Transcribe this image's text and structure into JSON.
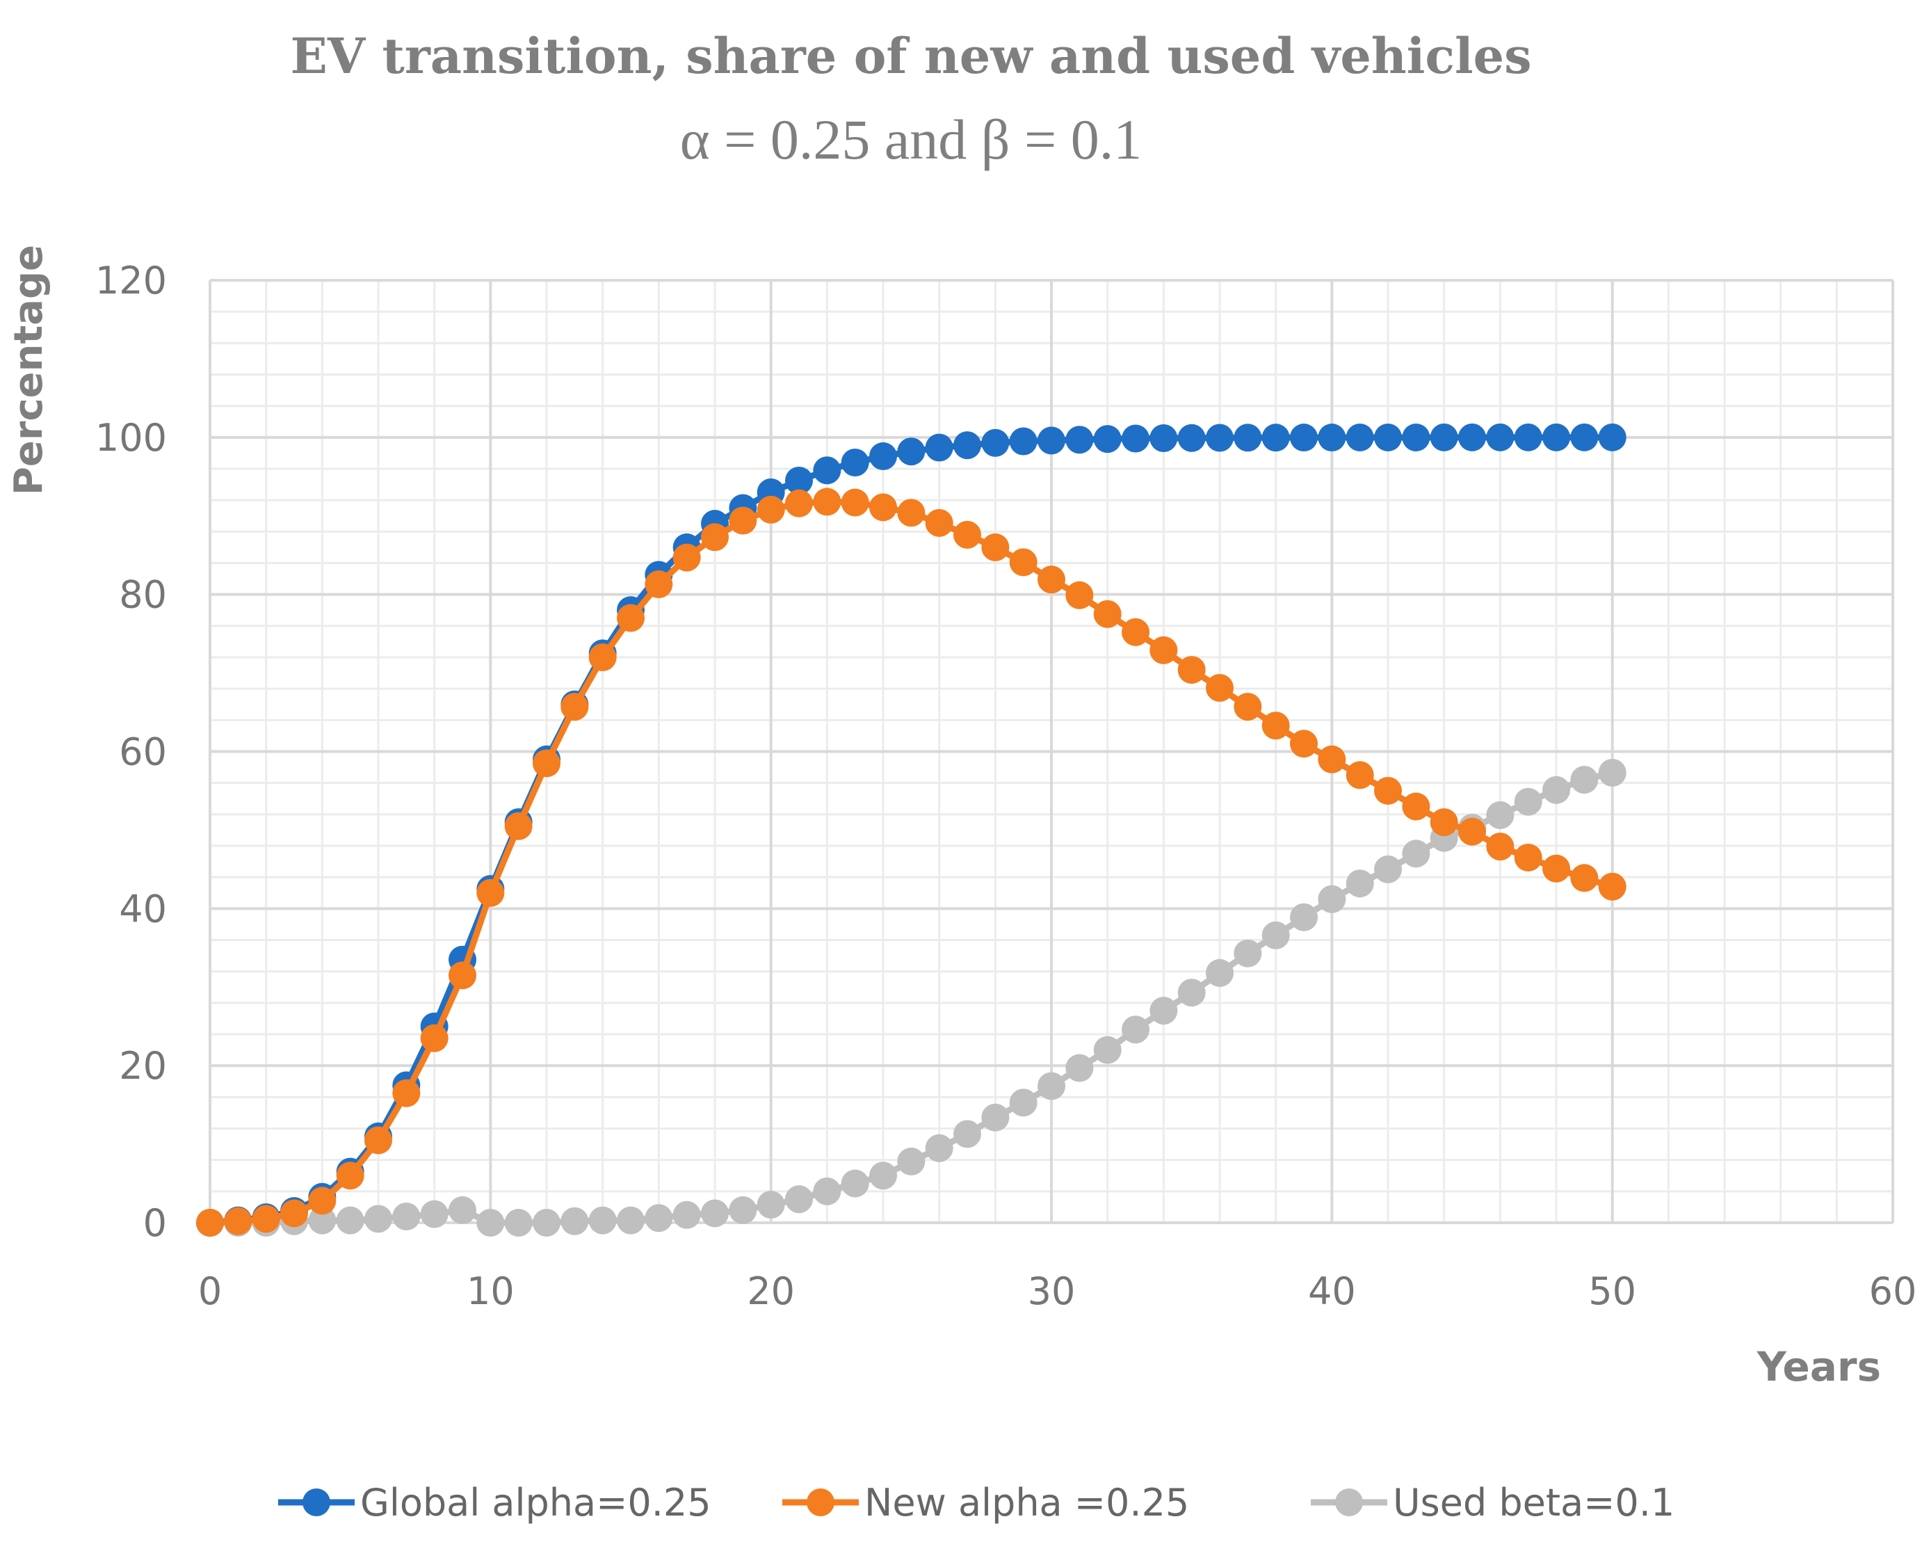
{
  "chart_data": {
    "type": "line",
    "title": "EV transition, share of new and used vehicles",
    "subtitle": "α  = 0.25 and β = 0.1",
    "xlabel": "Years",
    "ylabel": "Percentage",
    "xlim": [
      0,
      60
    ],
    "ylim": [
      0,
      120
    ],
    "x_ticks": [
      0,
      10,
      20,
      30,
      40,
      50,
      60
    ],
    "y_ticks": [
      0,
      20,
      40,
      60,
      80,
      100,
      120
    ],
    "grid": true,
    "legend_position": "bottom",
    "x": [
      0,
      1,
      2,
      3,
      4,
      5,
      6,
      7,
      8,
      9,
      10,
      11,
      12,
      13,
      14,
      15,
      16,
      17,
      18,
      19,
      20,
      21,
      22,
      23,
      24,
      25,
      26,
      27,
      28,
      29,
      30,
      31,
      32,
      33,
      34,
      35,
      36,
      37,
      38,
      39,
      40,
      41,
      42,
      43,
      44,
      45,
      46,
      47,
      48,
      49,
      50
    ],
    "series": [
      {
        "name": "Global alpha=0.25",
        "color": "#1f6fc6",
        "values": [
          0,
          0.3,
          0.7,
          1.5,
          3.3,
          6.5,
          11,
          17.5,
          25,
          33.5,
          42.5,
          51,
          59,
          66,
          72.5,
          78,
          82.5,
          86,
          89,
          91,
          93,
          94.5,
          95.8,
          96.8,
          97.6,
          98.2,
          98.7,
          99,
          99.3,
          99.5,
          99.6,
          99.7,
          99.8,
          99.85,
          99.9,
          99.92,
          99.94,
          99.96,
          99.97,
          99.98,
          99.98,
          99.99,
          99.99,
          99.99,
          100,
          100,
          100,
          100,
          100,
          100,
          100
        ]
      },
      {
        "name": "New alpha =0.25",
        "color": "#f47d20",
        "values": [
          0,
          0.2,
          0.5,
          1.2,
          2.8,
          6,
          10.5,
          16.5,
          23.5,
          31.5,
          42,
          50.5,
          58.5,
          65.7,
          72,
          77,
          81.3,
          84.7,
          87.3,
          89.4,
          90.8,
          91.6,
          91.8,
          91.7,
          91.1,
          90.4,
          89.1,
          87.6,
          86,
          84.1,
          81.9,
          79.9,
          77.5,
          75.2,
          72.9,
          70.4,
          68.1,
          65.7,
          63.3,
          61,
          59,
          57,
          55,
          53,
          51,
          49.8,
          47.9,
          46.5,
          45.1,
          43.9,
          42.8
        ]
      },
      {
        "name": "Used beta=0.1",
        "color": "#bfbfbf",
        "values": [
          0,
          0,
          0,
          0.2,
          0.3,
          0.3,
          0.5,
          0.8,
          1.1,
          1.6,
          0,
          0,
          0,
          0.2,
          0.3,
          0.3,
          0.6,
          1.0,
          1.2,
          1.6,
          2.3,
          3.0,
          4.0,
          5.0,
          6.0,
          7.8,
          9.5,
          11.3,
          13.4,
          15.3,
          17.4,
          19.7,
          22,
          24.6,
          27,
          29.3,
          31.8,
          34.3,
          36.6,
          38.9,
          41.2,
          43.2,
          45,
          47,
          49,
          50.3,
          51.9,
          53.6,
          55.1,
          56.4,
          57.3
        ]
      }
    ]
  }
}
